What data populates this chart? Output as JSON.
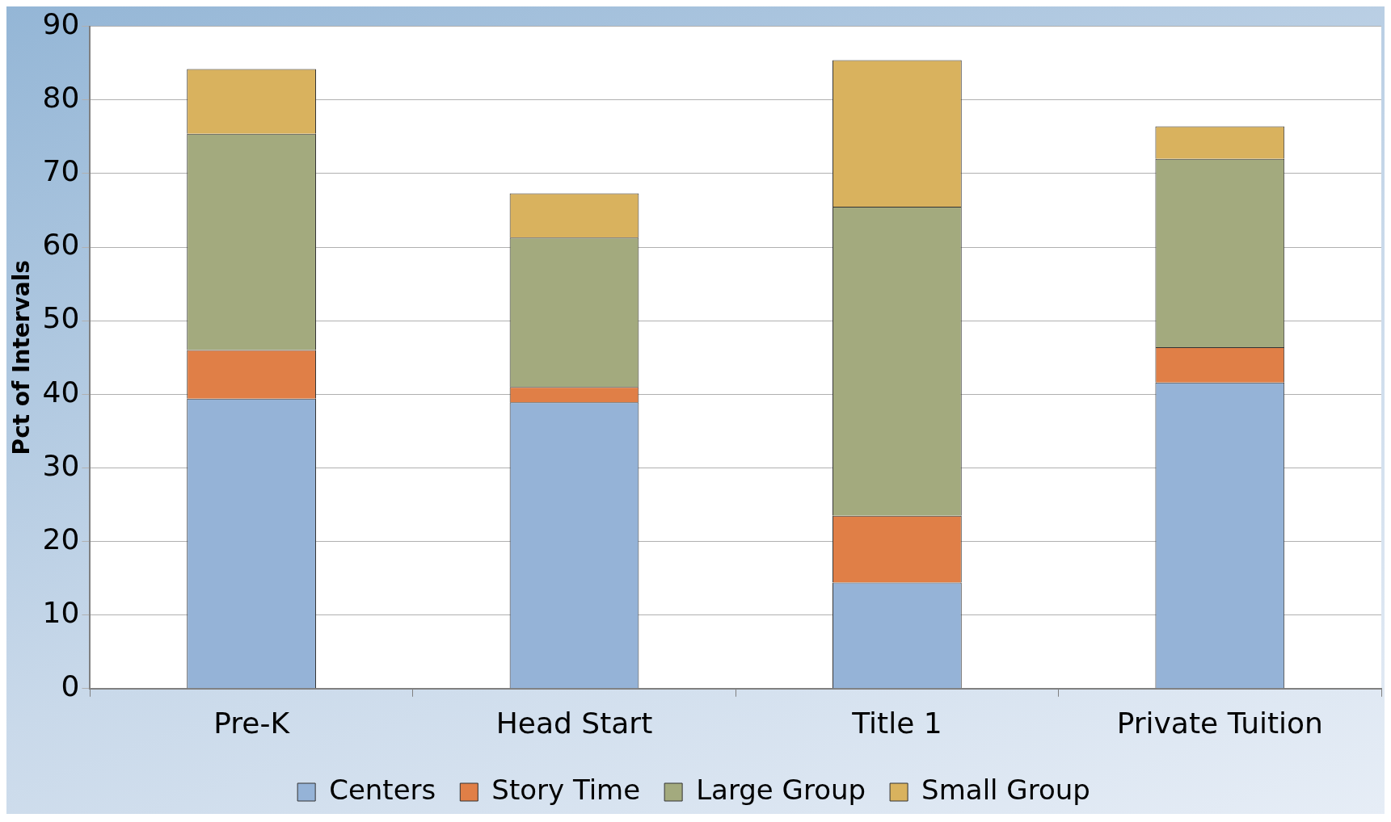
{
  "chart_data": {
    "type": "bar",
    "stacked": true,
    "ylabel": "Pct of Intervals",
    "categories": [
      "Pre-K",
      "Head Start",
      "Title 1",
      "Private Tuition"
    ],
    "series": [
      {
        "name": "Centers",
        "color": "#95b3d7",
        "values": [
          39.4,
          38.9,
          14.4,
          41.6
        ]
      },
      {
        "name": "Story Time",
        "color": "#e07f47",
        "values": [
          6.6,
          2.1,
          9.1,
          4.8
        ]
      },
      {
        "name": "Large Group",
        "color": "#a3aa7e",
        "values": [
          29.4,
          20.3,
          42.0,
          25.6
        ]
      },
      {
        "name": "Small Group",
        "color": "#d9b25e",
        "values": [
          8.8,
          6.0,
          19.9,
          4.4
        ]
      }
    ],
    "ylim": [
      0,
      90
    ],
    "yticks": [
      0,
      10,
      20,
      30,
      40,
      50,
      60,
      70,
      80,
      90
    ],
    "grid": "y",
    "legend": "bottom"
  }
}
